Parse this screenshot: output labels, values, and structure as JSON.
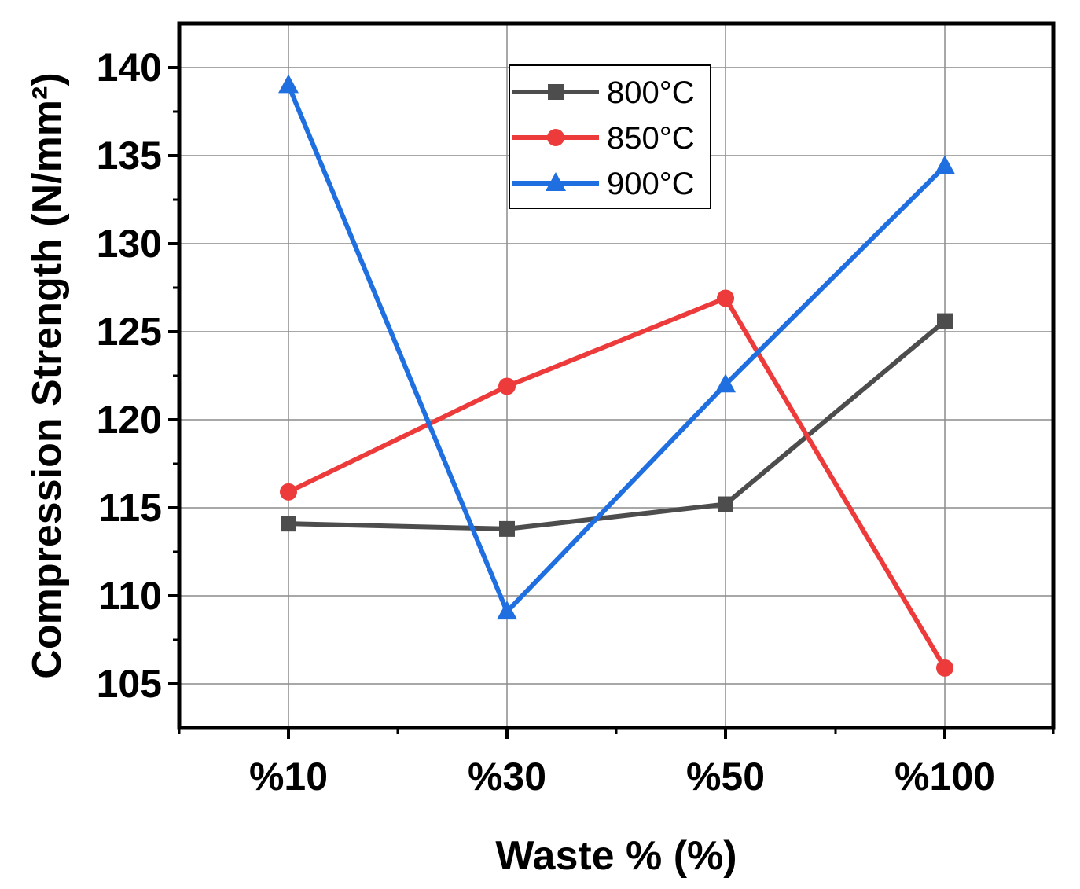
{
  "chart_data": {
    "type": "line",
    "title": "",
    "xlabel": "Waste % (%)",
    "ylabel": "Compression Strength (N/mm²)",
    "categories": [
      "%10",
      "%30",
      "%50",
      "%100"
    ],
    "ylim": [
      102.5,
      142.5
    ],
    "yticks": [
      105,
      110,
      115,
      120,
      125,
      130,
      135,
      140
    ],
    "ytick_labels": [
      "105",
      "110",
      "115",
      "120",
      "125",
      "130",
      "135",
      "140"
    ],
    "grid": true,
    "legend_position": "top-center",
    "series": [
      {
        "name": "800°C",
        "color": "#4d4d4d",
        "marker": "square",
        "values": [
          114.1,
          113.8,
          115.2,
          125.6
        ]
      },
      {
        "name": "850°C",
        "color": "#ed3b3b",
        "marker": "circle",
        "values": [
          115.9,
          121.9,
          126.9,
          105.9
        ]
      },
      {
        "name": "900°C",
        "color": "#1f6fe0",
        "marker": "triangle",
        "values": [
          139.0,
          109.1,
          122.0,
          134.4
        ]
      }
    ]
  }
}
